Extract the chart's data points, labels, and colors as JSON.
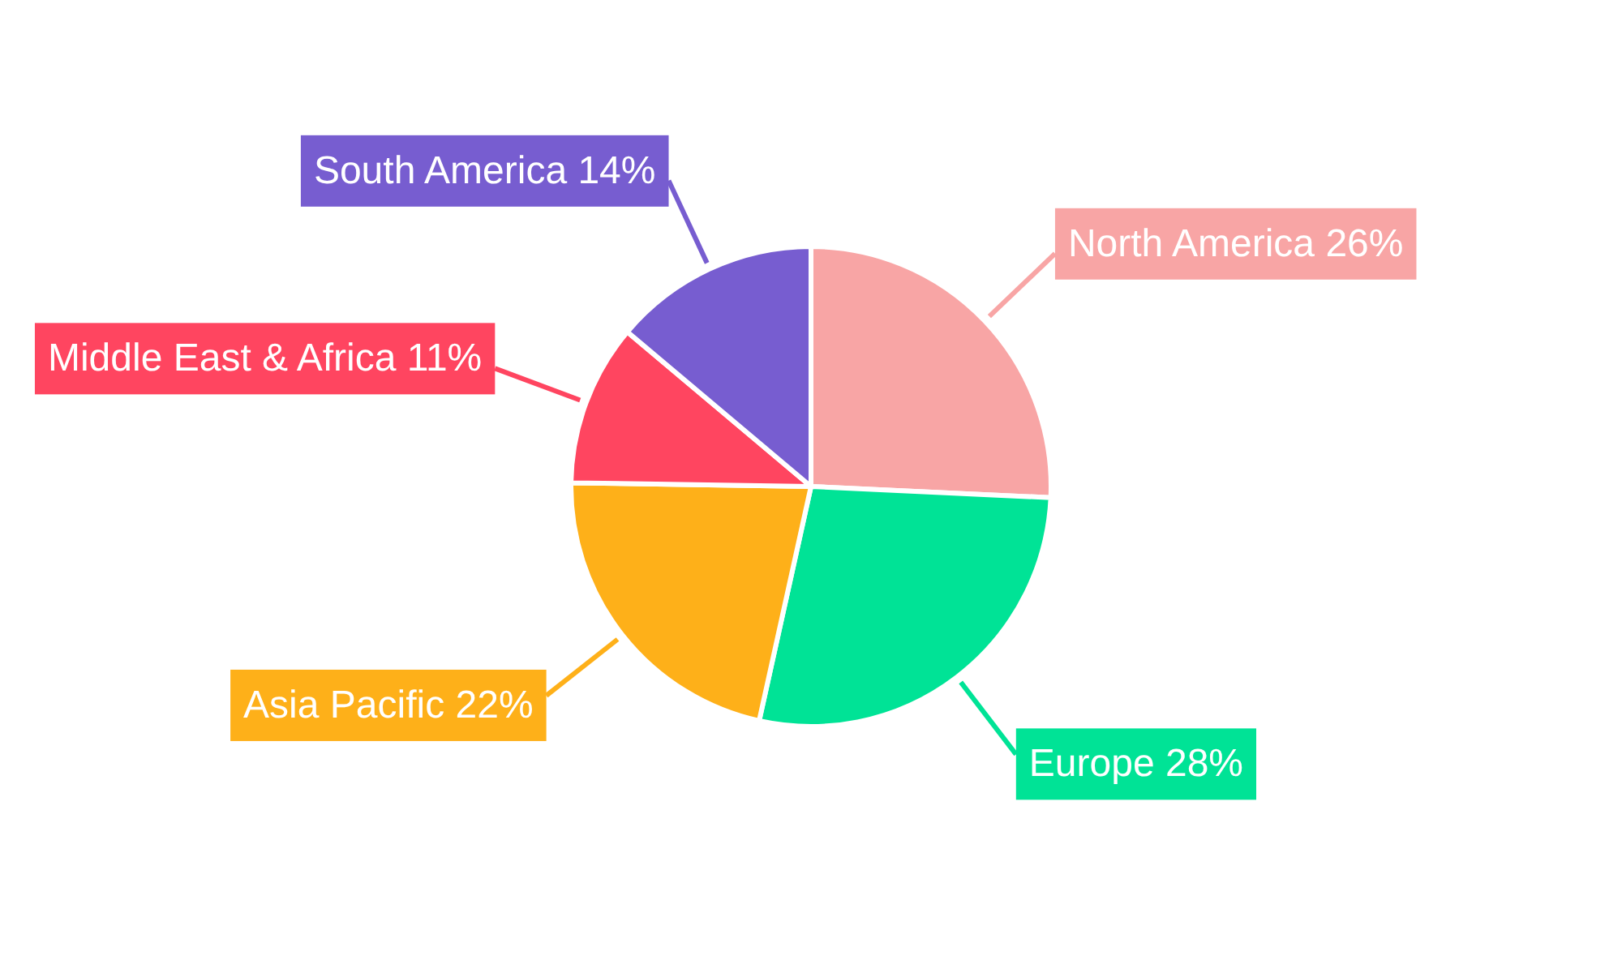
{
  "chart_data": {
    "type": "pie",
    "categories": [
      "North America",
      "Europe",
      "Asia Pacific",
      "Middle East & Africa",
      "South America"
    ],
    "values": [
      26,
      28,
      22,
      11,
      14
    ],
    "value_labels": [
      "26%",
      "28%",
      "22%",
      "11%",
      "14%"
    ],
    "colors": [
      "#f8a5a5",
      "#00e396",
      "#feb019",
      "#ff4560",
      "#775dd0"
    ]
  }
}
